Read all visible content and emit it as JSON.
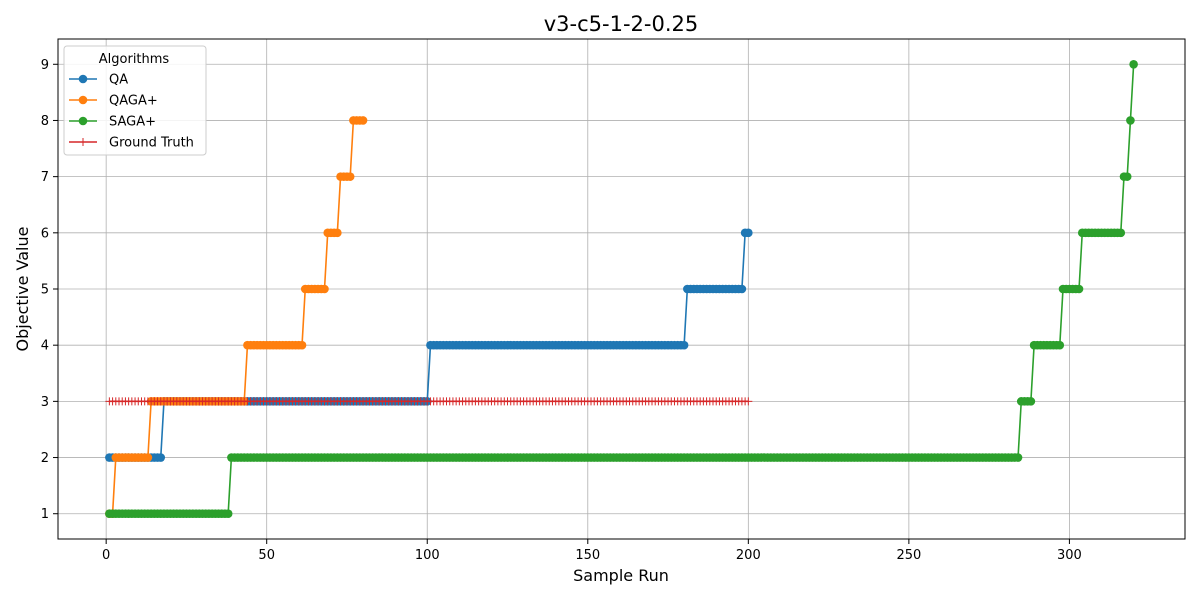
{
  "chart_data": {
    "type": "line",
    "title": "v3-c5-1-2-0.25",
    "xlabel": "Sample Run",
    "ylabel": "Objective Value",
    "xlim": [
      -15,
      336
    ],
    "ylim": [
      0.55,
      9.45
    ],
    "xticks": [
      0,
      50,
      100,
      150,
      200,
      250,
      300
    ],
    "yticks": [
      1,
      2,
      3,
      4,
      5,
      6,
      7,
      8,
      9
    ],
    "grid": true,
    "legend": {
      "title": "Algorithms",
      "placement": "top-left"
    },
    "series": [
      {
        "name": "QA",
        "color": "#1f77b4",
        "marker": "circle",
        "steps": [
          {
            "x_start": 1,
            "x_end": 17,
            "y": 2
          },
          {
            "x_start": 18,
            "x_end": 100,
            "y": 3
          },
          {
            "x_start": 101,
            "x_end": 180,
            "y": 4
          },
          {
            "x_start": 181,
            "x_end": 198,
            "y": 5
          },
          {
            "x_start": 199,
            "x_end": 200,
            "y": 6
          }
        ]
      },
      {
        "name": "QAGA+",
        "color": "#ff7f0e",
        "marker": "circle",
        "steps": [
          {
            "x_start": 1,
            "x_end": 2,
            "y": 1
          },
          {
            "x_start": 3,
            "x_end": 13,
            "y": 2
          },
          {
            "x_start": 14,
            "x_end": 43,
            "y": 3
          },
          {
            "x_start": 44,
            "x_end": 61,
            "y": 4
          },
          {
            "x_start": 62,
            "x_end": 68,
            "y": 5
          },
          {
            "x_start": 69,
            "x_end": 72,
            "y": 6
          },
          {
            "x_start": 73,
            "x_end": 76,
            "y": 7
          },
          {
            "x_start": 77,
            "x_end": 80,
            "y": 8
          }
        ]
      },
      {
        "name": "SAGA+",
        "color": "#2ca02c",
        "marker": "circle",
        "steps": [
          {
            "x_start": 1,
            "x_end": 38,
            "y": 1
          },
          {
            "x_start": 39,
            "x_end": 284,
            "y": 2
          },
          {
            "x_start": 285,
            "x_end": 288,
            "y": 3
          },
          {
            "x_start": 289,
            "x_end": 297,
            "y": 4
          },
          {
            "x_start": 298,
            "x_end": 303,
            "y": 5
          },
          {
            "x_start": 304,
            "x_end": 316,
            "y": 6
          },
          {
            "x_start": 317,
            "x_end": 318,
            "y": 7
          },
          {
            "x_start": 319,
            "x_end": 319,
            "y": 8
          },
          {
            "x_start": 320,
            "x_end": 320,
            "y": 9
          }
        ]
      },
      {
        "name": "Ground Truth",
        "color": "#d62728",
        "marker": "plus",
        "steps": [
          {
            "x_start": 1,
            "x_end": 200,
            "y": 3
          }
        ]
      }
    ]
  }
}
